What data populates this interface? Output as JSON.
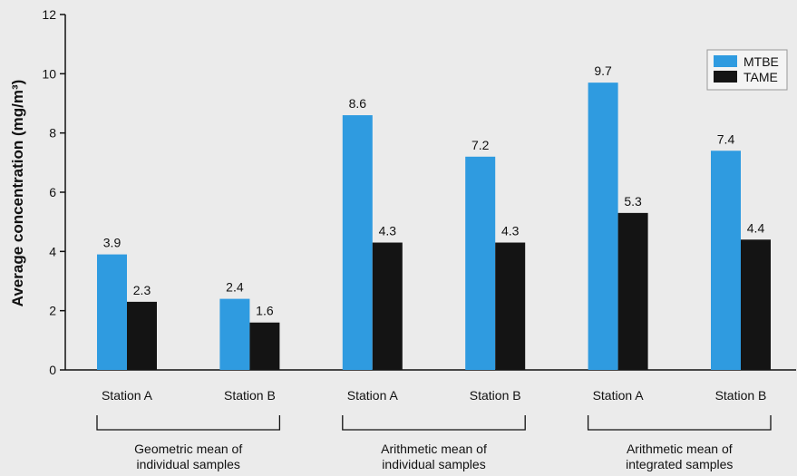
{
  "chart_data": {
    "type": "bar",
    "ylabel": "Average concentration (mg/m³)",
    "ylim": [
      0,
      12
    ],
    "yticks": [
      0,
      2,
      4,
      6,
      8,
      10,
      12
    ],
    "grid": false,
    "legend_position": "top-right",
    "categories": [
      "Station A",
      "Station B",
      "Station A",
      "Station B",
      "Station A",
      "Station B"
    ],
    "groups": [
      {
        "label": "Geometric mean of individual samples"
      },
      {
        "label": "Arithmetic mean of individual samples"
      },
      {
        "label": "Arithmetic mean of integrated samples"
      }
    ],
    "series": [
      {
        "name": "MTBE",
        "color": "#2f9be0",
        "values": [
          3.9,
          2.4,
          8.6,
          7.2,
          9.7,
          7.4
        ]
      },
      {
        "name": "TAME",
        "color": "#141414",
        "values": [
          2.3,
          1.6,
          4.3,
          4.3,
          5.3,
          4.4
        ]
      }
    ]
  }
}
